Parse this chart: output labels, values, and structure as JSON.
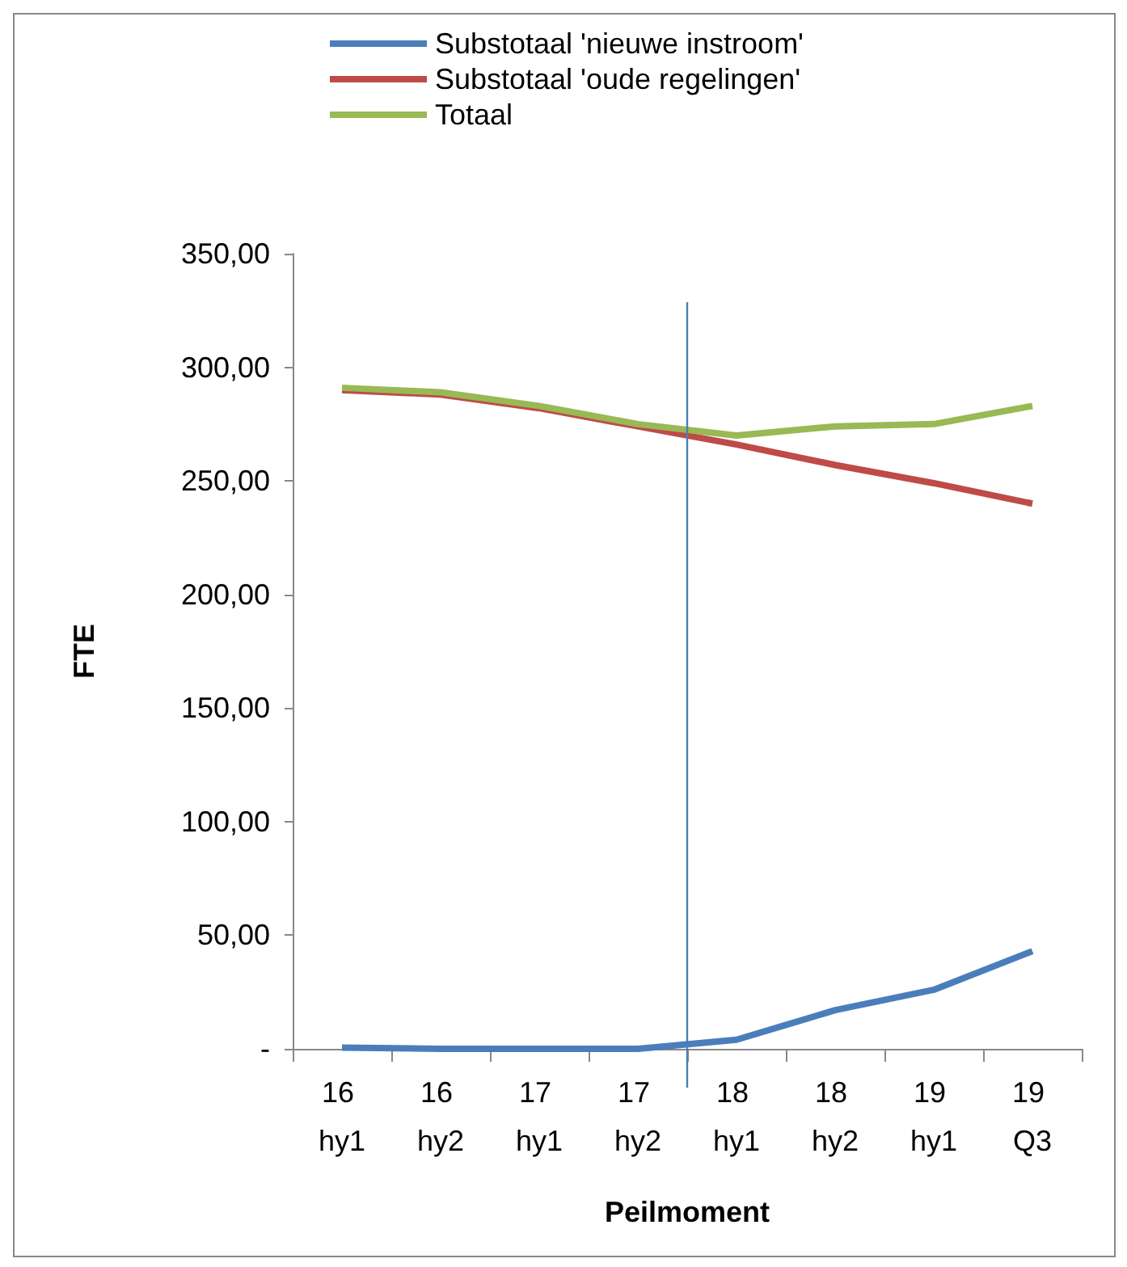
{
  "chart_data": {
    "type": "line",
    "xlabel": "Peilmoment",
    "ylabel": "FTE",
    "categories": [
      "16 hy1",
      "16 hy2",
      "17 hy1",
      "17 hy2",
      "18 hy1",
      "18 hy2",
      "19 hy1",
      "19 Q3"
    ],
    "series": [
      {
        "name": "Substotaal 'nieuwe instroom'",
        "color": "#4a7ebb",
        "values": [
          0.5,
          0,
          0,
          0,
          4,
          17,
          26,
          43
        ]
      },
      {
        "name": "Substotaal 'oude regelingen'",
        "color": "#be4b48",
        "values": [
          290,
          288,
          282,
          274,
          266,
          257,
          249,
          240
        ]
      },
      {
        "name": "Totaal",
        "color": "#98b954",
        "values": [
          291,
          289,
          283,
          275,
          270,
          274,
          275,
          283
        ]
      }
    ],
    "ylim": [
      0,
      350
    ],
    "yticks": [
      {
        "value": 0,
        "label": "-"
      },
      {
        "value": 50,
        "label": "50,00"
      },
      {
        "value": 100,
        "label": "100,00"
      },
      {
        "value": 150,
        "label": "150,00"
      },
      {
        "value": 200,
        "label": "200,00"
      },
      {
        "value": 250,
        "label": "250,00"
      },
      {
        "value": 300,
        "label": "300,00"
      },
      {
        "value": 350,
        "label": "350,00"
      }
    ],
    "ref_lines": [
      {
        "axis": "x",
        "value": "18 hy1",
        "color": "#4a7ebb"
      }
    ],
    "grid": false,
    "legend": "top",
    "marker": "none",
    "line_style": "solid"
  }
}
